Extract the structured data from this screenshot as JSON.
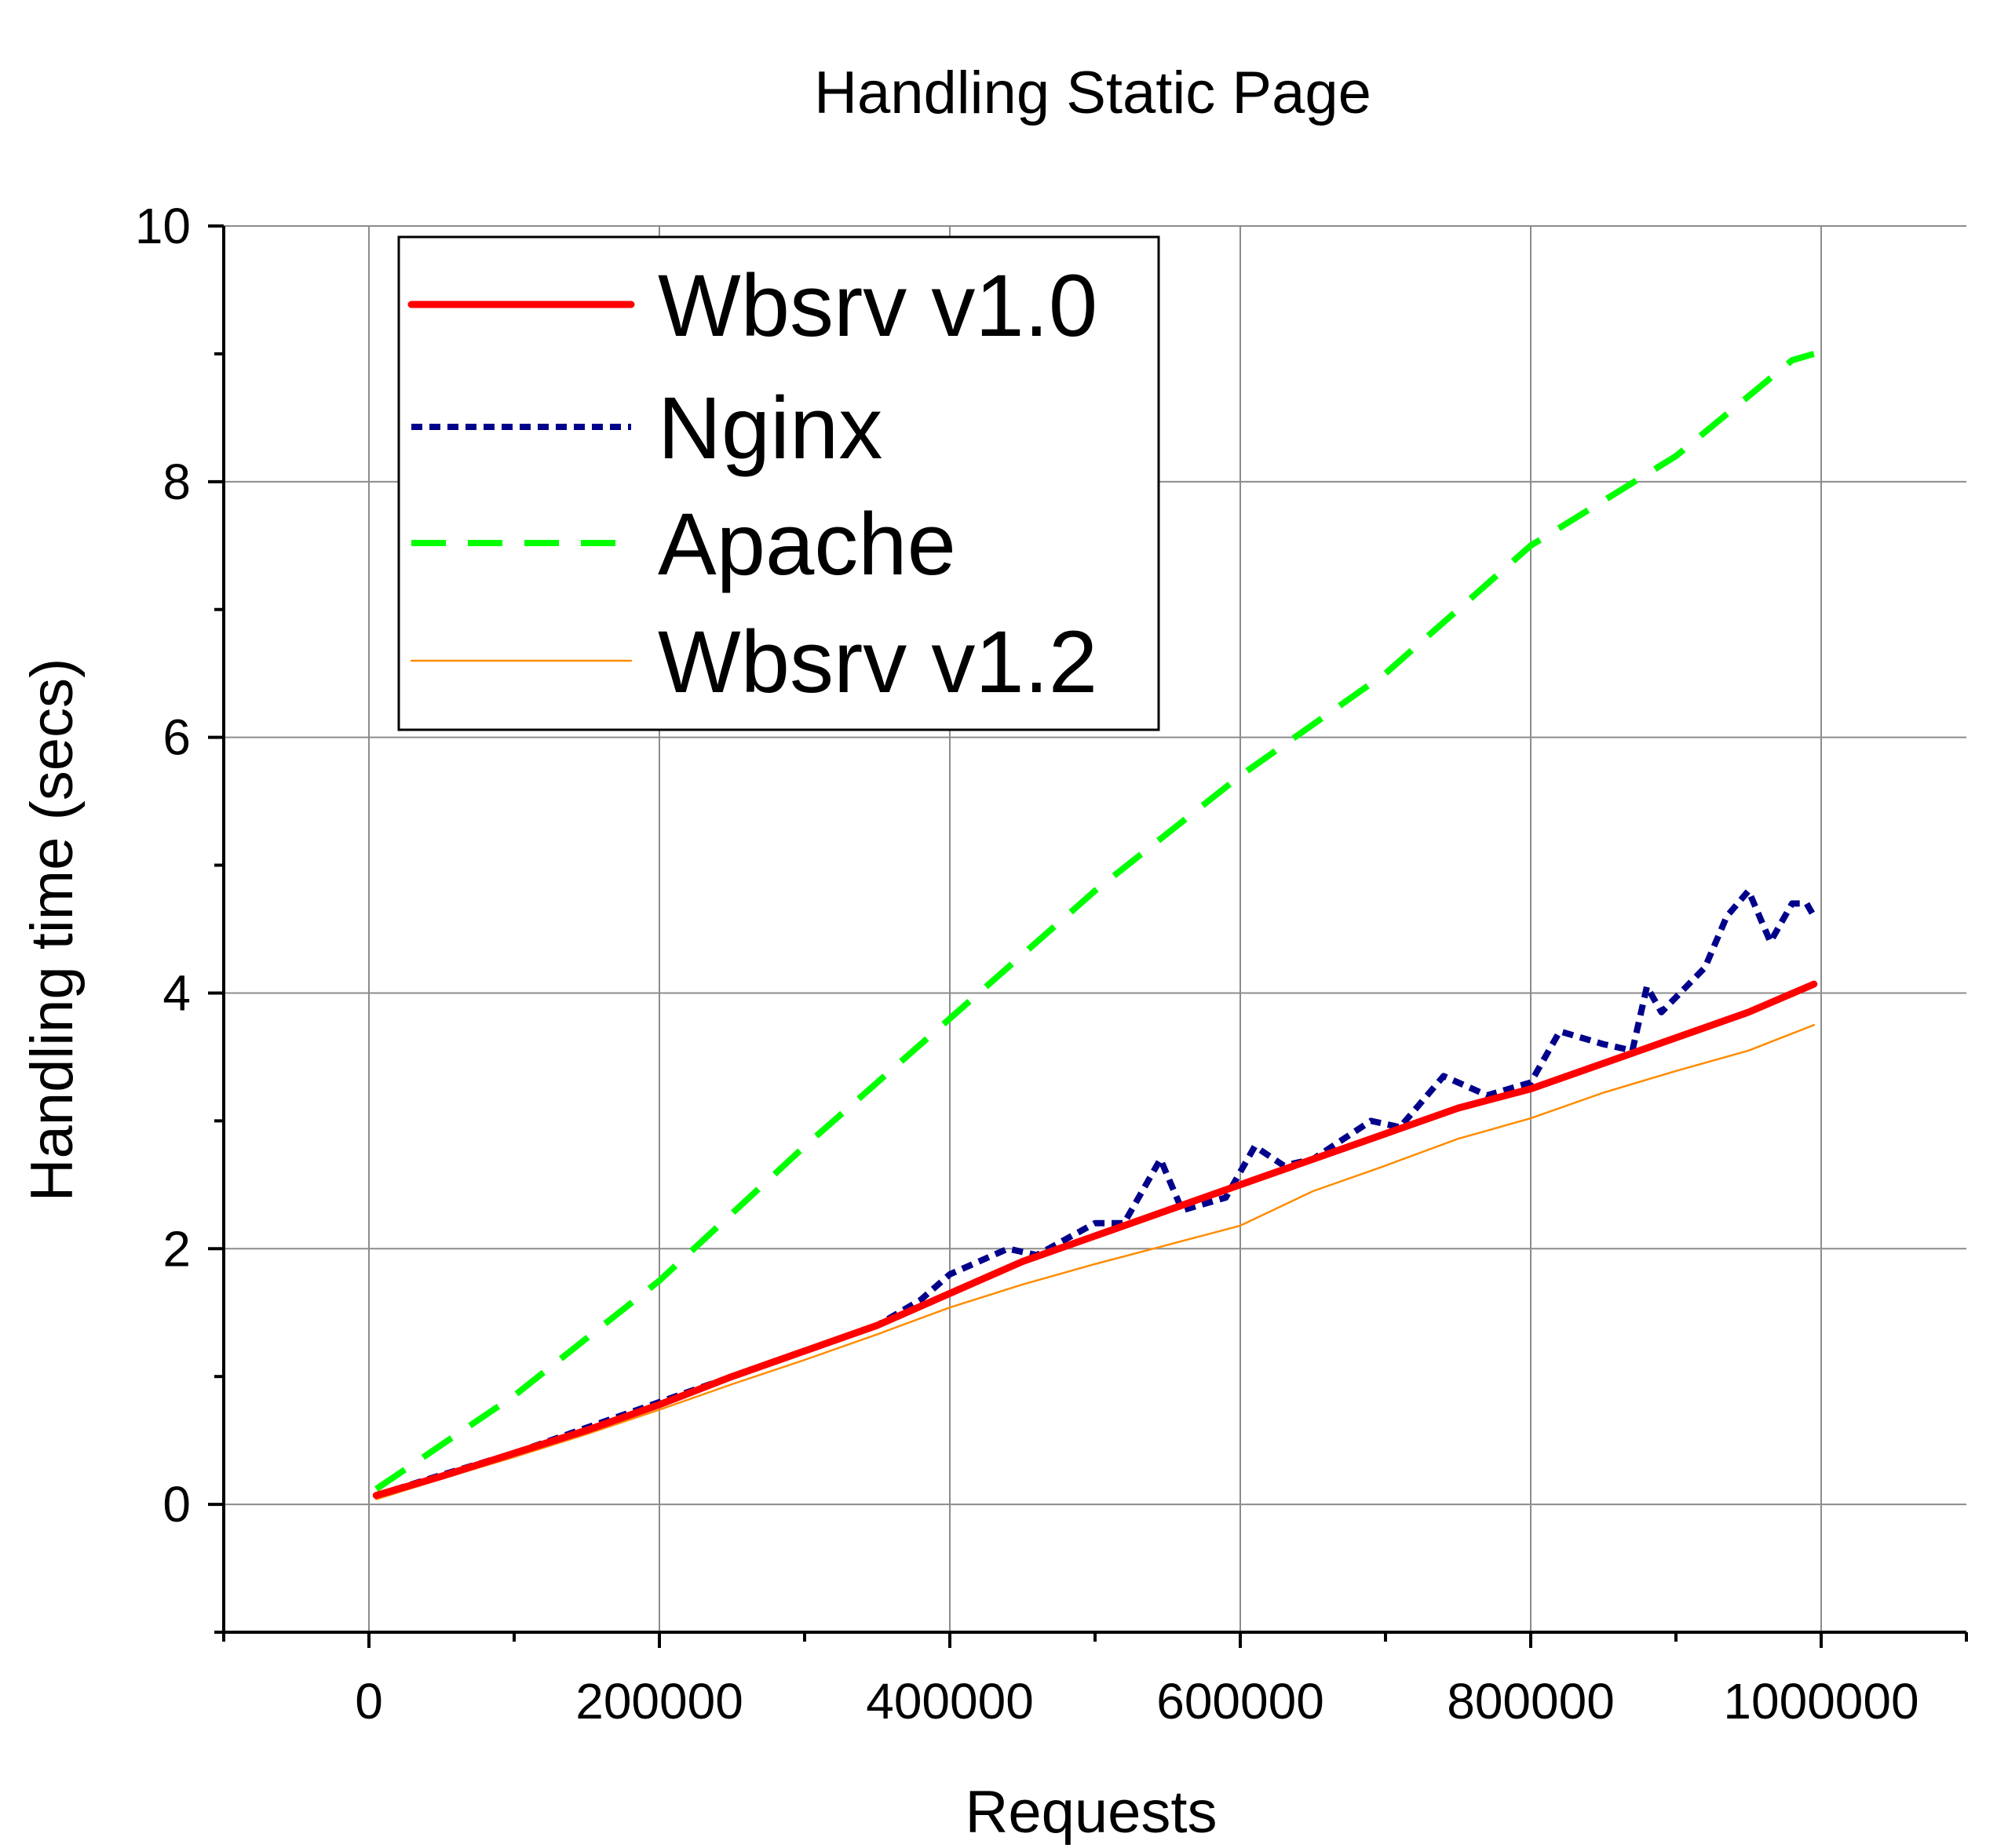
{
  "chart_data": {
    "type": "line",
    "title": "Handling Static Page",
    "xlabel": "Requests",
    "ylabel": "Handling time (secs)",
    "xlim": [
      -100000,
      1100000
    ],
    "ylim": [
      -1,
      10
    ],
    "x_ticks": [
      0,
      200000,
      400000,
      600000,
      800000,
      1000000
    ],
    "x_tick_labels": [
      "0",
      "200000",
      "400000",
      "600000",
      "800000",
      "1000000"
    ],
    "y_ticks": [
      0,
      2,
      4,
      6,
      8,
      10
    ],
    "y_tick_labels": [
      "0",
      "2",
      "4",
      "6",
      "8",
      "10"
    ],
    "grid": true,
    "legend_position": "top-left",
    "series": [
      {
        "name": "Wbsrv v1.0",
        "color": "#ff0000",
        "style": "solid-thick",
        "x": [
          5000,
          50000,
          100000,
          150000,
          200000,
          250000,
          300000,
          350000,
          400000,
          450000,
          500000,
          550000,
          600000,
          650000,
          700000,
          750000,
          800000,
          850000,
          900000,
          950000,
          995000
        ],
        "y": [
          0.07,
          0.22,
          0.4,
          0.58,
          0.78,
          1.0,
          1.2,
          1.4,
          1.65,
          1.9,
          2.1,
          2.3,
          2.5,
          2.7,
          2.9,
          3.1,
          3.25,
          3.45,
          3.65,
          3.85,
          4.07
        ]
      },
      {
        "name": "Nginx",
        "color": "#00008b",
        "style": "dotted",
        "x": [
          5000,
          50000,
          100000,
          150000,
          200000,
          250000,
          300000,
          350000,
          380000,
          400000,
          440000,
          460000,
          500000,
          520000,
          545000,
          560000,
          590000,
          610000,
          630000,
          650000,
          690000,
          710000,
          740000,
          770000,
          800000,
          820000,
          850000,
          870000,
          880000,
          890000,
          920000,
          935000,
          950000,
          965000,
          980000,
          990000,
          995000
        ],
        "y": [
          0.07,
          0.23,
          0.4,
          0.6,
          0.8,
          1.0,
          1.2,
          1.4,
          1.6,
          1.8,
          2.0,
          1.95,
          2.2,
          2.2,
          2.7,
          2.3,
          2.4,
          2.8,
          2.65,
          2.7,
          3.0,
          2.95,
          3.35,
          3.2,
          3.3,
          3.7,
          3.6,
          3.55,
          4.05,
          3.85,
          4.2,
          4.6,
          4.8,
          4.4,
          4.7,
          4.7,
          4.6
        ]
      },
      {
        "name": "Apache",
        "color": "#00ff00",
        "style": "dashed",
        "x": [
          5000,
          100000,
          200000,
          300000,
          400000,
          500000,
          600000,
          700000,
          800000,
          900000,
          980000,
          995000
        ],
        "y": [
          0.12,
          0.85,
          1.75,
          2.8,
          3.8,
          4.8,
          5.7,
          6.5,
          7.5,
          8.2,
          8.95,
          9.0
        ],
        "_note": ""
      },
      {
        "name": "Wbsrv v1.2",
        "color": "#ff8c00",
        "style": "solid-thin",
        "x": [
          5000,
          50000,
          100000,
          150000,
          200000,
          250000,
          300000,
          350000,
          400000,
          450000,
          500000,
          550000,
          600000,
          650000,
          700000,
          750000,
          800000,
          850000,
          900000,
          950000,
          995000
        ],
        "y": [
          0.04,
          0.2,
          0.37,
          0.55,
          0.74,
          0.94,
          1.13,
          1.33,
          1.54,
          1.72,
          1.88,
          2.03,
          2.18,
          2.45,
          2.65,
          2.86,
          3.02,
          3.22,
          3.39,
          3.55,
          3.75
        ]
      }
    ]
  }
}
